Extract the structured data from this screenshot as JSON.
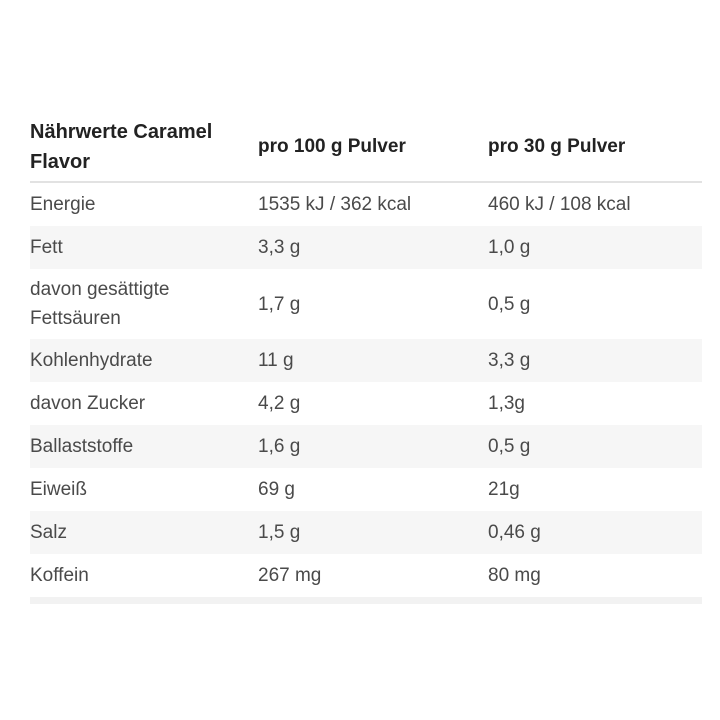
{
  "table": {
    "title": "Nährwerte Caramel Flavor",
    "columns": {
      "per100_label": "pro 100 g Pulver",
      "per30_label": "pro 30 g Pulver"
    },
    "rows": [
      {
        "label": "Energie",
        "per100": "1535 kJ / 362 kcal",
        "per30": "460 kJ / 108 kcal"
      },
      {
        "label": "Fett",
        "per100": "3,3 g",
        "per30": "1,0 g"
      },
      {
        "label": "davon gesättigte Fettsäuren",
        "per100": "1,7 g",
        "per30": "0,5 g"
      },
      {
        "label": "Kohlenhydrate",
        "per100": "11 g",
        "per30": "3,3 g"
      },
      {
        "label": "davon Zucker",
        "per100": "4,2 g",
        "per30": "1,3g"
      },
      {
        "label": "Ballaststoffe",
        "per100": "1,6 g",
        "per30": "0,5 g"
      },
      {
        "label": "Eiweiß",
        "per100": "69 g",
        "per30": "21g"
      },
      {
        "label": "Salz",
        "per100": "1,5 g",
        "per30": "0,46 g"
      },
      {
        "label": "Koffein",
        "per100": "267 mg",
        "per30": "80 mg"
      }
    ],
    "colors": {
      "page_background": "#ffffff",
      "header_text": "#222222",
      "body_text": "#4a4a4a",
      "shaded_row_background": "#f6f6f6",
      "header_divider": "#e2e2e2",
      "bottom_bar": "#f2f2f2"
    }
  }
}
